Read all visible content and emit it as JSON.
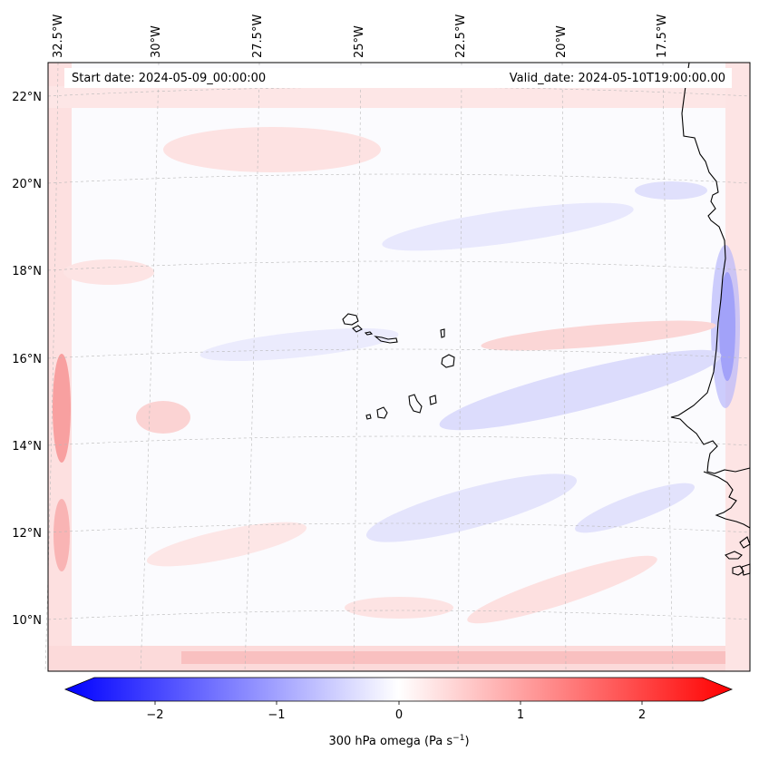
{
  "header": {
    "start_date": "Start date: 2024-05-09_00:00:00",
    "valid_date": "Valid_date: 2024-05-10T19:00:00.00"
  },
  "longitude_labels": [
    "32.5°W",
    "30°W",
    "27.5°W",
    "25°W",
    "22.5°W",
    "20°W",
    "17.5°W"
  ],
  "latitude_labels": [
    "22°N",
    "20°N",
    "18°N",
    "16°N",
    "14°N",
    "12°N",
    "10°N"
  ],
  "colorbar": {
    "ticks": [
      "−2",
      "−1",
      "0",
      "1",
      "2"
    ],
    "tick_values": [
      -2,
      -1,
      0,
      1,
      2
    ],
    "range": [
      -2.6,
      2.6
    ],
    "label_prefix": "300 hPa omega (Pa s",
    "label_exp": "−1",
    "label_suffix": ")",
    "colormap": "bwr",
    "low_color": "#0000ff",
    "mid_color": "#ffffff",
    "high_color": "#ff0000"
  },
  "map": {
    "variable": "300 hPa omega",
    "units": "Pa s^-1",
    "coastline_color": "#000000",
    "gridline_color": "#b0b0b0"
  }
}
